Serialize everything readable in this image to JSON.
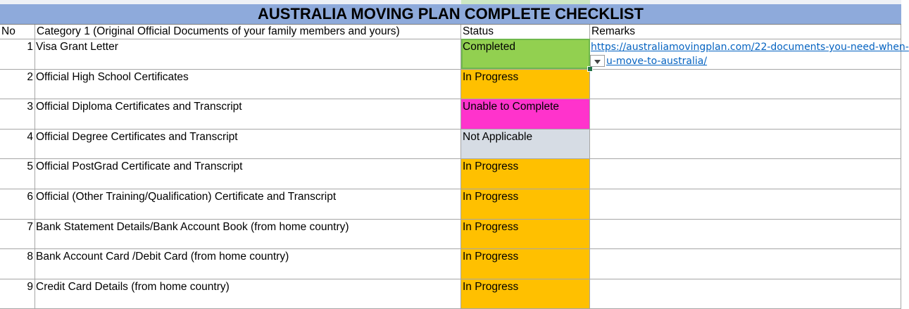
{
  "title": "AUSTRALIA MOVING PLAN COMPLETE CHECKLIST",
  "headers": {
    "no": "No",
    "category": "Category 1 (Original Official Documents of your family members and yours)",
    "status": "Status",
    "remarks": "Remarks"
  },
  "rows": [
    {
      "no": "1",
      "item": "Visa Grant Letter",
      "status": "Completed",
      "status_color": "#92d050",
      "remark_line1": "https://australiamovingplan.com/22-documents-you-need-when-",
      "remark_line2": "u-move-to-australia/"
    },
    {
      "no": "2",
      "item": "Official High School Certificates",
      "status": "In Progress",
      "status_color": "#ffc000"
    },
    {
      "no": "3",
      "item": "Official Diploma Certificates and Transcript",
      "status": "Unable to Complete",
      "status_color": "#ff33cc"
    },
    {
      "no": "4",
      "item": "Official Degree Certificates and Transcript",
      "status": "Not Applicable",
      "status_color": "#d6dce4"
    },
    {
      "no": "5",
      "item": "Official PostGrad Certificate and Transcript",
      "status": "In Progress",
      "status_color": "#ffc000"
    },
    {
      "no": "6",
      "item": "Official (Other Training/Qualification) Certificate and Transcript",
      "status": "In Progress",
      "status_color": "#ffc000"
    },
    {
      "no": "7",
      "item": "Bank Statement Details/Bank Account Book (from home country)",
      "status": "In Progress",
      "status_color": "#ffc000"
    },
    {
      "no": "8",
      "item": "Bank Account Card /Debit Card (from home country)",
      "status": "In Progress",
      "status_color": "#ffc000"
    },
    {
      "no": "9",
      "item": "Credit Card Details (from home country)",
      "status": "In Progress",
      "status_color": "#ffc000"
    }
  ],
  "colors": {
    "title_bg": "#8eaadb",
    "link": "#0563c1"
  },
  "icons": {
    "dropdown": "chevron-down-icon"
  }
}
